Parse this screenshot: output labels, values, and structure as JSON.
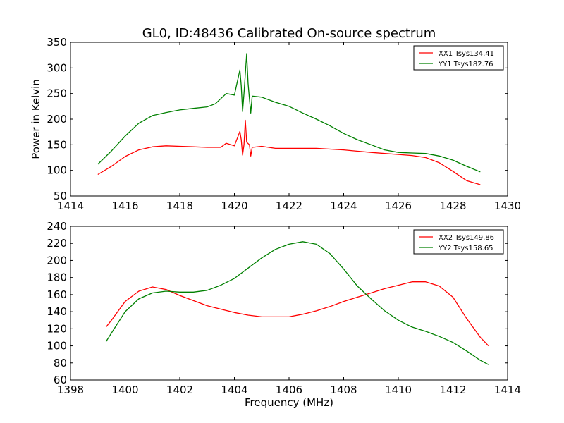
{
  "title": "GL0, ID:48436 Calibrated On-source spectrum",
  "xlabel": "Frequency (MHz)",
  "ylabel": "Power in Kelvin",
  "chart_data": [
    {
      "type": "line",
      "xlim": [
        1414,
        1430
      ],
      "ylim": [
        50,
        350
      ],
      "xticks": [
        1414,
        1416,
        1418,
        1420,
        1422,
        1424,
        1426,
        1428,
        1430
      ],
      "yticks": [
        50,
        100,
        150,
        200,
        250,
        300,
        350
      ],
      "legend_position": "top-right",
      "grid": false,
      "series": [
        {
          "name": "XX1 Tsys134.41",
          "color": "#ff0000",
          "points": [
            [
              1415.0,
              92
            ],
            [
              1415.5,
              108
            ],
            [
              1416.0,
              127
            ],
            [
              1416.5,
              140
            ],
            [
              1417.0,
              146
            ],
            [
              1417.5,
              148
            ],
            [
              1418.0,
              147
            ],
            [
              1418.5,
              146
            ],
            [
              1419.0,
              145
            ],
            [
              1419.5,
              145
            ],
            [
              1419.7,
              153
            ],
            [
              1420.0,
              148
            ],
            [
              1420.2,
              176
            ],
            [
              1420.25,
              160
            ],
            [
              1420.3,
              130
            ],
            [
              1420.35,
              150
            ],
            [
              1420.4,
              198
            ],
            [
              1420.45,
              155
            ],
            [
              1420.55,
              150
            ],
            [
              1420.6,
              128
            ],
            [
              1420.65,
              145
            ],
            [
              1421.0,
              147
            ],
            [
              1421.5,
              143
            ],
            [
              1422.0,
              143
            ],
            [
              1423.0,
              143
            ],
            [
              1424.0,
              140
            ],
            [
              1425.0,
              135
            ],
            [
              1426.0,
              131
            ],
            [
              1426.5,
              129
            ],
            [
              1427.0,
              125
            ],
            [
              1427.5,
              115
            ],
            [
              1428.0,
              98
            ],
            [
              1428.5,
              80
            ],
            [
              1429.0,
              72
            ]
          ]
        },
        {
          "name": "YY1 Tsys182.76",
          "color": "#008000",
          "points": [
            [
              1415.0,
              112
            ],
            [
              1415.5,
              138
            ],
            [
              1416.0,
              167
            ],
            [
              1416.5,
              192
            ],
            [
              1417.0,
              207
            ],
            [
              1417.5,
              213
            ],
            [
              1418.0,
              218
            ],
            [
              1418.5,
              221
            ],
            [
              1419.0,
              224
            ],
            [
              1419.3,
              230
            ],
            [
              1419.7,
              250
            ],
            [
              1420.0,
              247
            ],
            [
              1420.2,
              296
            ],
            [
              1420.25,
              265
            ],
            [
              1420.3,
              215
            ],
            [
              1420.35,
              250
            ],
            [
              1420.45,
              328
            ],
            [
              1420.5,
              270
            ],
            [
              1420.55,
              240
            ],
            [
              1420.6,
              212
            ],
            [
              1420.65,
              245
            ],
            [
              1421.0,
              243
            ],
            [
              1421.5,
              233
            ],
            [
              1422.0,
              225
            ],
            [
              1422.5,
              212
            ],
            [
              1423.0,
              200
            ],
            [
              1423.5,
              187
            ],
            [
              1424.0,
              172
            ],
            [
              1424.5,
              160
            ],
            [
              1425.0,
              150
            ],
            [
              1425.5,
              140
            ],
            [
              1426.0,
              135
            ],
            [
              1426.5,
              134
            ],
            [
              1427.0,
              133
            ],
            [
              1427.5,
              128
            ],
            [
              1428.0,
              120
            ],
            [
              1428.5,
              108
            ],
            [
              1429.0,
              97
            ]
          ]
        }
      ]
    },
    {
      "type": "line",
      "xlim": [
        1398,
        1414
      ],
      "ylim": [
        60,
        240
      ],
      "xticks": [
        1398,
        1400,
        1402,
        1404,
        1406,
        1408,
        1410,
        1412,
        1414
      ],
      "yticks": [
        60,
        80,
        100,
        120,
        140,
        160,
        180,
        200,
        220,
        240
      ],
      "legend_position": "top-right",
      "grid": false,
      "series": [
        {
          "name": "XX2 Tsys149.86",
          "color": "#ff0000",
          "points": [
            [
              1399.3,
              122
            ],
            [
              1399.5,
              130
            ],
            [
              1400.0,
              152
            ],
            [
              1400.5,
              164
            ],
            [
              1401.0,
              169
            ],
            [
              1401.5,
              166
            ],
            [
              1402.0,
              159
            ],
            [
              1402.5,
              153
            ],
            [
              1403.0,
              147
            ],
            [
              1403.5,
              143
            ],
            [
              1404.0,
              139
            ],
            [
              1404.5,
              136
            ],
            [
              1405.0,
              134
            ],
            [
              1405.5,
              134
            ],
            [
              1406.0,
              134
            ],
            [
              1406.5,
              137
            ],
            [
              1407.0,
              141
            ],
            [
              1407.5,
              146
            ],
            [
              1408.0,
              152
            ],
            [
              1408.5,
              157
            ],
            [
              1409.0,
              162
            ],
            [
              1409.5,
              167
            ],
            [
              1410.0,
              171
            ],
            [
              1410.5,
              175
            ],
            [
              1411.0,
              175
            ],
            [
              1411.5,
              170
            ],
            [
              1412.0,
              157
            ],
            [
              1412.5,
              132
            ],
            [
              1413.0,
              110
            ],
            [
              1413.3,
              100
            ]
          ]
        },
        {
          "name": "YY2 Tsys158.65",
          "color": "#008000",
          "points": [
            [
              1399.3,
              105
            ],
            [
              1399.5,
              115
            ],
            [
              1400.0,
              140
            ],
            [
              1400.5,
              155
            ],
            [
              1401.0,
              162
            ],
            [
              1401.5,
              164
            ],
            [
              1402.0,
              163
            ],
            [
              1402.5,
              163
            ],
            [
              1403.0,
              165
            ],
            [
              1403.5,
              171
            ],
            [
              1404.0,
              179
            ],
            [
              1404.5,
              191
            ],
            [
              1405.0,
              203
            ],
            [
              1405.5,
              213
            ],
            [
              1406.0,
              219
            ],
            [
              1406.5,
              222
            ],
            [
              1407.0,
              219
            ],
            [
              1407.5,
              208
            ],
            [
              1408.0,
              190
            ],
            [
              1408.5,
              170
            ],
            [
              1409.0,
              155
            ],
            [
              1409.5,
              141
            ],
            [
              1410.0,
              130
            ],
            [
              1410.5,
              122
            ],
            [
              1411.0,
              117
            ],
            [
              1411.5,
              111
            ],
            [
              1412.0,
              104
            ],
            [
              1412.5,
              94
            ],
            [
              1413.0,
              83
            ],
            [
              1413.3,
              78
            ]
          ]
        }
      ]
    }
  ]
}
